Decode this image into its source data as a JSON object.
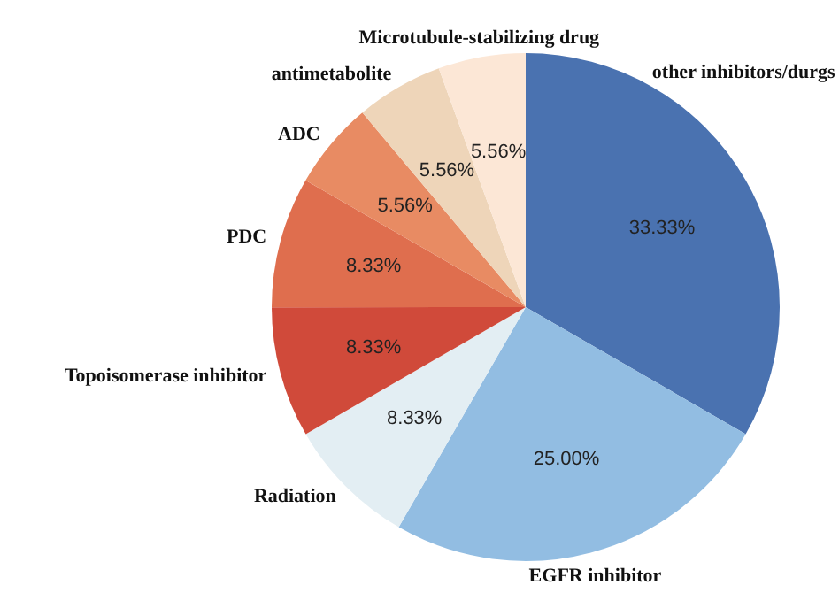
{
  "chart_data": {
    "type": "pie",
    "categories": [
      "other inhibitors/durgs",
      "EGFR inhibitor",
      "Radiation",
      "Topoisomerase inhibitor",
      "PDC",
      "ADC",
      "antimetabolite",
      "Microtubule-stabilizing drug"
    ],
    "values": [
      33.33,
      25.0,
      8.33,
      8.33,
      8.33,
      5.56,
      5.56,
      5.56
    ],
    "value_labels": [
      "33.33%",
      "25.00%",
      "8.33%",
      "8.33%",
      "8.33%",
      "5.56%",
      "5.56%",
      "5.56%"
    ],
    "colors": [
      "#4a72b0",
      "#92bde2",
      "#e3eef3",
      "#d04a3a",
      "#df6e4e",
      "#e88b63",
      "#eed5b9",
      "#fce7d6"
    ],
    "legend": false
  }
}
